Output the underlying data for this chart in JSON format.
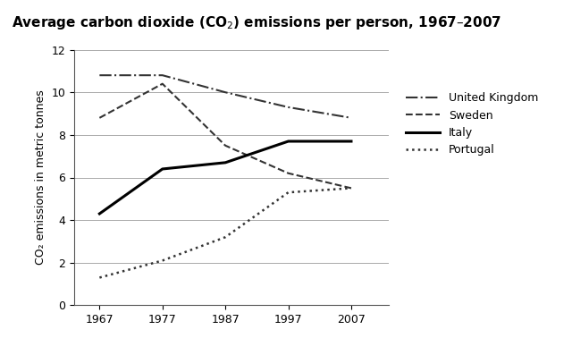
{
  "title": "Average carbon dioxide (CO$_2$) emissions per person, 1967–2007",
  "ylabel": "CO₂ emissions in metric tonnes",
  "years": [
    1967,
    1977,
    1987,
    1997,
    2007
  ],
  "series": {
    "United Kingdom": {
      "values": [
        10.8,
        10.8,
        10.0,
        9.3,
        8.8
      ],
      "linestyle": "-.",
      "linewidth": 1.5,
      "color": "#333333"
    },
    "Sweden": {
      "values": [
        8.8,
        10.4,
        7.5,
        6.2,
        5.5
      ],
      "linestyle": "--",
      "linewidth": 1.5,
      "color": "#333333"
    },
    "Italy": {
      "values": [
        4.3,
        6.4,
        6.7,
        7.7,
        7.7
      ],
      "linestyle": "-",
      "linewidth": 2.2,
      "color": "#000000"
    },
    "Portugal": {
      "values": [
        1.3,
        2.1,
        3.2,
        5.3,
        5.5
      ],
      "linestyle": ":",
      "linewidth": 1.8,
      "color": "#333333"
    }
  },
  "xlim": [
    1963,
    2013
  ],
  "ylim": [
    0,
    12
  ],
  "yticks": [
    0,
    2,
    4,
    6,
    8,
    10,
    12
  ],
  "xticks": [
    1967,
    1977,
    1987,
    1997,
    2007
  ],
  "grid_color": "#aaaaaa",
  "background_color": "#ffffff",
  "title_fontsize": 11,
  "axis_label_fontsize": 9,
  "tick_fontsize": 9,
  "legend_fontsize": 9
}
